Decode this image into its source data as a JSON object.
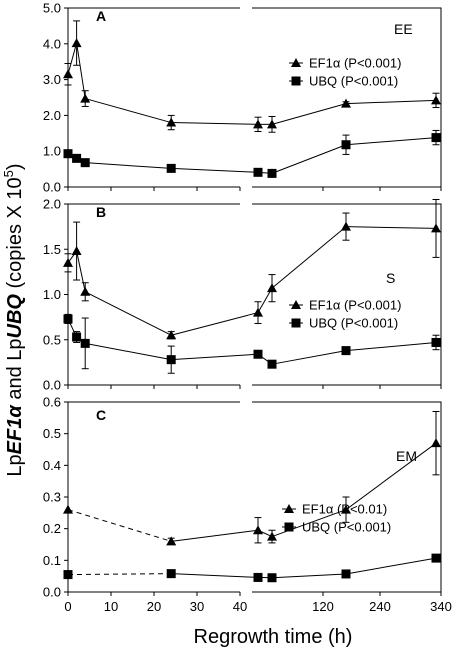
{
  "ylabel": {
    "prefix": "Lp",
    "gene1": "EF1α",
    "and": " and Lp",
    "gene2": "UBQ",
    "units": " (copies X 10",
    "exp": "5",
    "close": ")"
  },
  "xlabel": "Regrowth time (h)",
  "x_tick_labels": [
    "0",
    "10",
    "20",
    "30",
    "40",
    "120",
    "240",
    "340"
  ],
  "colors": {
    "line": "#000000",
    "frame": "#000000",
    "background": "#ffffff"
  },
  "chart_data": [
    {
      "type": "line",
      "panel_letter": "A",
      "tissue_label": "EE",
      "ylim": [
        0,
        5
      ],
      "y_ticks": [
        0,
        1,
        2,
        3,
        4,
        5
      ],
      "y_tick_labels": [
        "0.0",
        "1.0",
        "2.0",
        "3.0",
        "4.0",
        "5.0"
      ],
      "legend_position": "top-right",
      "series": [
        {
          "name": "EF1α (P<0.001)",
          "marker": "triangle",
          "x": [
            0,
            2,
            4,
            24,
            42,
            48,
            168,
            336
          ],
          "y": [
            3.15,
            4.02,
            2.47,
            1.8,
            1.75,
            1.75,
            2.33,
            2.42
          ],
          "err": [
            0.3,
            0.62,
            0.22,
            0.2,
            0.2,
            0.22,
            0.05,
            0.2
          ],
          "dashed_gap": false
        },
        {
          "name": "UBQ (P<0.001)",
          "marker": "square",
          "x": [
            0,
            2,
            4,
            24,
            42,
            48,
            168,
            336
          ],
          "y": [
            0.93,
            0.8,
            0.68,
            0.52,
            0.41,
            0.38,
            1.18,
            1.38
          ],
          "err": [
            0.08,
            0.05,
            0.04,
            0.04,
            0.04,
            0.04,
            0.27,
            0.2
          ],
          "dashed_gap": false
        }
      ]
    },
    {
      "type": "line",
      "panel_letter": "B",
      "tissue_label": "S",
      "ylim": [
        0,
        2
      ],
      "y_ticks": [
        0,
        0.5,
        1,
        1.5,
        2
      ],
      "y_tick_labels": [
        "0.0",
        "0.5",
        "1.0",
        "1.5",
        "2.0"
      ],
      "legend_position": "center-right",
      "series": [
        {
          "name": "EF1α (P<0.001)",
          "marker": "triangle",
          "x": [
            0,
            2,
            4,
            24,
            42,
            48,
            168,
            336
          ],
          "y": [
            1.35,
            1.48,
            1.03,
            0.55,
            0.8,
            1.07,
            1.75,
            1.73
          ],
          "err": [
            0.1,
            0.32,
            0.1,
            0.04,
            0.12,
            0.15,
            0.15,
            0.32
          ],
          "dashed_gap": false
        },
        {
          "name": "UBQ (P<0.001)",
          "marker": "square",
          "x": [
            0,
            2,
            4,
            24,
            42,
            48,
            168,
            336
          ],
          "y": [
            0.73,
            0.53,
            0.46,
            0.28,
            0.34,
            0.23,
            0.38,
            0.47
          ],
          "err": [
            0.05,
            0.06,
            0.28,
            0.15,
            0.04,
            0.02,
            0.02,
            0.08
          ],
          "dashed_gap": false
        }
      ]
    },
    {
      "type": "line",
      "panel_letter": "C",
      "tissue_label": "EM",
      "ylim": [
        0,
        0.6
      ],
      "y_ticks": [
        0,
        0.1,
        0.2,
        0.3,
        0.4,
        0.5,
        0.6
      ],
      "y_tick_labels": [
        "0.0",
        "0.1",
        "0.2",
        "0.3",
        "0.4",
        "0.5",
        "0.6"
      ],
      "legend_position": "top-right",
      "series": [
        {
          "name": "EF1α (P<0.01)",
          "marker": "triangle",
          "x": [
            0,
            24,
            42,
            48,
            168,
            336
          ],
          "y": [
            0.26,
            0.16,
            0.195,
            0.175,
            0.26,
            0.47
          ],
          "err": [
            0.0,
            0.01,
            0.04,
            0.02,
            0.04,
            0.1
          ],
          "dashed_gap": true
        },
        {
          "name": "UBQ (P<0.001)",
          "marker": "square",
          "x": [
            0,
            24,
            42,
            48,
            168,
            336
          ],
          "y": [
            0.055,
            0.058,
            0.046,
            0.045,
            0.057,
            0.107
          ],
          "err": [
            0.0,
            0.005,
            0.005,
            0.004,
            0.005,
            0.01
          ],
          "dashed_gap": true
        }
      ]
    }
  ]
}
